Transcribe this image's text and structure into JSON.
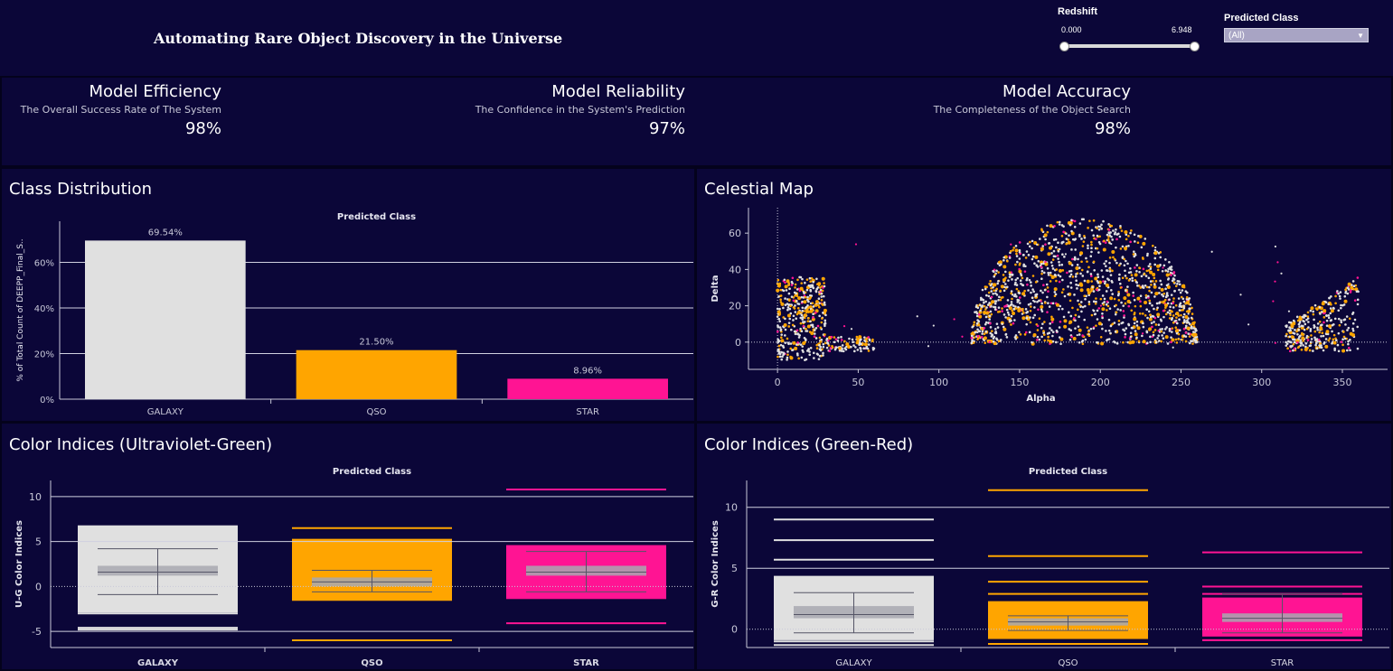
{
  "header": {
    "title": "Automating Rare Object Discovery in the Universe"
  },
  "filters": {
    "redshift": {
      "label": "Redshift",
      "min": "0.000",
      "max": "6.948"
    },
    "predicted_class": {
      "label": "Predicted Class",
      "value": "(All)"
    }
  },
  "kpis": [
    {
      "title": "Model Efficiency",
      "subtitle": "The Overall Success Rate of The System",
      "value": "98%"
    },
    {
      "title": "Model Reliability",
      "subtitle": "The Confidence in the System's Prediction",
      "value": "97%"
    },
    {
      "title": "Model Accuracy",
      "subtitle": "The Completeness of the Object Search",
      "value": "98%"
    }
  ],
  "colors": {
    "GALAXY": "#e0e0e0",
    "QSO": "#ffa500",
    "STAR": "#ff1493",
    "background": "#0b0638"
  },
  "chart_data": [
    {
      "type": "bar",
      "title": "Class Distribution",
      "header": "Predicted Class",
      "ylabel": "% of Total Count of DEEPP_Final_S..",
      "categories": [
        "GALAXY",
        "QSO",
        "STAR"
      ],
      "values": [
        69.54,
        21.5,
        8.96
      ],
      "value_labels": [
        "69.54%",
        "21.50%",
        "8.96%"
      ],
      "yticks": [
        "0%",
        "20%",
        "40%",
        "60%"
      ],
      "ylim": [
        0,
        78
      ]
    },
    {
      "type": "scatter",
      "title": "Celestial Map",
      "xlabel": "Alpha",
      "ylabel": "Delta",
      "xticks": [
        "0",
        "50",
        "100",
        "150",
        "200",
        "250",
        "300",
        "350"
      ],
      "yticks": [
        "0",
        "20",
        "40",
        "60"
      ],
      "xlim": [
        -18,
        378
      ],
      "ylim": [
        -15,
        74
      ],
      "clusters": [
        {
          "class": "mixed",
          "x": [
            0,
            30
          ],
          "y": [
            -10,
            36
          ],
          "n": 380
        },
        {
          "class": "mixed",
          "x": [
            30,
            60
          ],
          "y": [
            -5,
            3
          ],
          "n": 90
        },
        {
          "class": "mixed",
          "x": [
            120,
            260
          ],
          "y": [
            -1,
            68
          ],
          "n": 1400,
          "shape": "dome"
        },
        {
          "class": "mixed",
          "x": [
            315,
            360
          ],
          "y": [
            -5,
            36
          ],
          "n": 320,
          "shape": "ramp"
        }
      ]
    },
    {
      "type": "box",
      "title": "Color Indices (Ultraviolet-Green)",
      "header": "Predicted Class",
      "ylabel": "U-G Color Indices",
      "categories": [
        "GALAXY",
        "QSO",
        "STAR"
      ],
      "yticks": [
        "-5",
        "0",
        "5",
        "10"
      ],
      "ylim": [
        -6.8,
        11.8
      ],
      "boxes": [
        {
          "q1": 1.2,
          "median": 1.6,
          "q3": 2.3,
          "whisker_low": -0.9,
          "whisker_high": 4.2,
          "band_low": -2.8,
          "band_high": 6.8,
          "outliers": [
            -4.8,
            -4.6,
            -3.0,
            -2.8,
            6.1
          ]
        },
        {
          "q1": 0.0,
          "median": 0.5,
          "q3": 1.0,
          "whisker_low": -0.6,
          "whisker_high": 1.8,
          "band_low": -1.5,
          "band_high": 5.3,
          "outliers": [
            -6.0,
            -1.5,
            5.0,
            6.5
          ]
        },
        {
          "q1": 1.2,
          "median": 1.6,
          "q3": 2.3,
          "whisker_low": -0.6,
          "whisker_high": 3.9,
          "band_low": -1.4,
          "band_high": 4.6,
          "outliers": [
            -4.1,
            -1.2,
            -1.0,
            4.3,
            10.8
          ]
        }
      ]
    },
    {
      "type": "box",
      "title": "Color Indices (Green-Red)",
      "header": "Predicted Class",
      "ylabel": "G-R Color Indices",
      "categories": [
        "GALAXY",
        "QSO",
        "STAR"
      ],
      "yticks": [
        "0",
        "5",
        "10"
      ],
      "ylim": [
        -1.5,
        12.2
      ],
      "boxes": [
        {
          "q1": 0.9,
          "median": 1.2,
          "q3": 1.9,
          "whisker_low": -0.3,
          "whisker_high": 3.0,
          "band_low": -0.9,
          "band_high": 4.3,
          "outliers": [
            -1.3,
            -1.0,
            4.3,
            5.7,
            7.3,
            9.0
          ]
        },
        {
          "q1": 0.3,
          "median": 0.6,
          "q3": 0.9,
          "whisker_low": -0.1,
          "whisker_high": 1.1,
          "band_low": -0.8,
          "band_high": 2.3,
          "outliers": [
            -1.2,
            2.9,
            3.9,
            6.0,
            11.4
          ]
        },
        {
          "q1": 0.6,
          "median": 0.9,
          "q3": 1.3,
          "whisker_low": -0.3,
          "whisker_high": 2.9,
          "band_low": -0.6,
          "band_high": 2.6,
          "outliers": [
            -0.9,
            2.9,
            3.5,
            6.3
          ]
        }
      ]
    }
  ]
}
